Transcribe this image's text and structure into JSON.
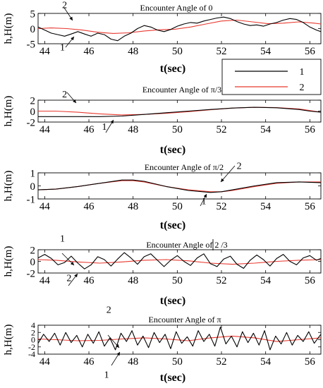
{
  "chart_data": [
    {
      "type": "line",
      "title": "Encounter Angle of 0",
      "xlabel": "t(sec)",
      "ylabel": "h,H(m)",
      "xlim": [
        43.7,
        56.5
      ],
      "ylim": [
        -5,
        5
      ],
      "xticks": [
        44,
        46,
        48,
        50,
        52,
        54,
        56
      ],
      "xtick_labels": [
        "44",
        "46",
        "48",
        "50",
        "52",
        "54",
        "56"
      ],
      "yticks": [
        -5,
        0,
        5
      ],
      "ytick_labels": [
        "-5",
        "0",
        "5"
      ],
      "grid": false,
      "legend": {
        "placement": "right",
        "entries": [
          "1",
          "2"
        ]
      },
      "annotations": [
        {
          "text": "1",
          "x": 44.8,
          "y": -7.2
        },
        {
          "text": "2",
          "x": 44.9,
          "y": 6.8
        }
      ],
      "series": [
        {
          "name": "1",
          "color": "#000000",
          "x": [
            43.7,
            44.0,
            44.3,
            44.6,
            44.9,
            45.2,
            45.5,
            45.8,
            46.1,
            46.4,
            46.7,
            47.0,
            47.3,
            47.6,
            47.9,
            48.2,
            48.5,
            48.8,
            49.1,
            49.4,
            49.7,
            50.0,
            50.3,
            50.6,
            50.9,
            51.2,
            51.5,
            51.8,
            52.1,
            52.4,
            52.7,
            53.0,
            53.3,
            53.6,
            53.9,
            54.2,
            54.5,
            54.8,
            55.1,
            55.4,
            55.7,
            56.0,
            56.3,
            56.5
          ],
          "y": [
            0.5,
            -0.5,
            -1.5,
            -2.0,
            -2.5,
            -1.8,
            -1.0,
            -1.8,
            -2.5,
            -1.5,
            -2.0,
            -3.5,
            -4.0,
            -2.5,
            -1.5,
            0.0,
            1.0,
            0.5,
            -0.5,
            -1.0,
            -0.3,
            0.8,
            1.5,
            2.0,
            1.8,
            2.5,
            3.0,
            3.5,
            3.8,
            3.3,
            2.3,
            1.5,
            1.0,
            1.2,
            0.8,
            1.5,
            2.0,
            2.8,
            3.3,
            3.0,
            2.0,
            0.5,
            -0.5,
            -1.0
          ]
        },
        {
          "name": "2",
          "color": "#e8392f",
          "x": [
            43.7,
            44.3,
            45.0,
            45.7,
            46.4,
            47.1,
            47.8,
            48.5,
            49.2,
            49.9,
            50.6,
            51.3,
            52.0,
            52.7,
            53.4,
            54.1,
            54.8,
            55.5,
            56.2,
            56.5
          ],
          "y": [
            0.0,
            0.2,
            0.0,
            -0.5,
            -1.2,
            -1.6,
            -1.4,
            -0.8,
            -0.4,
            -0.2,
            0.5,
            1.5,
            2.5,
            2.8,
            2.2,
            1.6,
            1.8,
            2.2,
            1.8,
            1.5
          ]
        }
      ]
    },
    {
      "type": "line",
      "title": "Encounter Angle of π/3",
      "xlabel": "t(sec)",
      "ylabel": "h,H(m)",
      "xlim": [
        43.7,
        56.5
      ],
      "ylim": [
        -2,
        2
      ],
      "xticks": [
        44,
        46,
        48,
        50,
        52,
        54,
        56
      ],
      "xtick_labels": [
        "44",
        "46",
        "48",
        "50",
        "52",
        "54",
        "56"
      ],
      "yticks": [
        -2,
        0,
        2
      ],
      "ytick_labels": [
        "-2",
        "0",
        "2"
      ],
      "grid": false,
      "annotations": [
        {
          "text": "2",
          "x": 44.9,
          "y": 2.5
        },
        {
          "text": "1",
          "x": 46.7,
          "y": -3.4
        }
      ],
      "series": [
        {
          "name": "1",
          "color": "#000000",
          "x": [
            43.7,
            44.5,
            45.5,
            46.5,
            47.5,
            48.5,
            49.5,
            50.5,
            51.5,
            52.5,
            53.5,
            54.5,
            55.5,
            56.0,
            56.5
          ],
          "y": [
            -1.0,
            -1.0,
            -1.0,
            -1.0,
            -0.9,
            -0.6,
            -0.3,
            0.0,
            0.3,
            0.55,
            0.7,
            0.6,
            0.3,
            0.0,
            -0.2
          ]
        },
        {
          "name": "2",
          "color": "#e8392f",
          "x": [
            43.7,
            44.5,
            45.5,
            46.5,
            47.5,
            48.5,
            49.5,
            50.5,
            51.5,
            52.5,
            53.5,
            54.5,
            55.5,
            56.0,
            56.5
          ],
          "y": [
            0.0,
            0.0,
            -0.2,
            -0.5,
            -0.7,
            -0.6,
            -0.4,
            -0.1,
            0.25,
            0.55,
            0.7,
            0.65,
            0.4,
            0.1,
            -0.2
          ]
        }
      ]
    },
    {
      "type": "line",
      "title": "Encounter Angle of π/2",
      "xlabel": "t(sec)",
      "ylabel": "h,H(m)",
      "xlim": [
        43.7,
        56.5
      ],
      "ylim": [
        -1,
        1
      ],
      "xticks": [
        44,
        46,
        48,
        50,
        52,
        54,
        56
      ],
      "xtick_labels": [
        "44",
        "46",
        "48",
        "50",
        "52",
        "54",
        "56"
      ],
      "yticks": [
        -1,
        0,
        1
      ],
      "ytick_labels": [
        "-1",
        "0",
        "1"
      ],
      "grid": false,
      "annotations": [
        {
          "text": "2",
          "x": 52.8,
          "y": 1.3
        },
        {
          "text": "1",
          "x": 51.2,
          "y": -1.4
        }
      ],
      "series": [
        {
          "name": "1",
          "color": "#000000",
          "x": [
            43.7,
            44.5,
            45.5,
            46.5,
            47.5,
            48.0,
            48.5,
            49.5,
            50.5,
            51.5,
            52.0,
            52.5,
            53.5,
            54.5,
            55.5,
            56.5
          ],
          "y": [
            -0.3,
            -0.25,
            -0.05,
            0.2,
            0.45,
            0.45,
            0.35,
            -0.05,
            -0.35,
            -0.5,
            -0.45,
            -0.3,
            0.0,
            0.25,
            0.3,
            0.25
          ]
        },
        {
          "name": "2",
          "color": "#e8392f",
          "x": [
            43.7,
            44.5,
            45.5,
            46.5,
            47.5,
            48.0,
            48.5,
            49.5,
            50.5,
            51.5,
            52.0,
            52.5,
            53.5,
            54.5,
            55.5,
            56.5
          ],
          "y": [
            -0.3,
            -0.25,
            -0.05,
            0.2,
            0.4,
            0.4,
            0.3,
            -0.05,
            -0.3,
            -0.45,
            -0.45,
            -0.35,
            -0.05,
            0.2,
            0.3,
            0.3
          ]
        }
      ]
    },
    {
      "type": "line",
      "title": "Encounter Angle of 2   /3",
      "xlabel": "t(sec)",
      "ylabel": "h,H(m)",
      "xlim": [
        43.7,
        56.5
      ],
      "ylim": [
        -2,
        2
      ],
      "xticks": [
        44,
        46,
        48,
        50,
        52,
        54,
        56
      ],
      "xtick_labels": [
        "44",
        "46",
        "48",
        "50",
        "52",
        "54",
        "56"
      ],
      "yticks": [
        -2,
        0,
        2
      ],
      "ytick_labels": [
        "-2",
        "0",
        "2"
      ],
      "grid": false,
      "annotations": [
        {
          "text": "1",
          "x": 44.8,
          "y": 3.4
        },
        {
          "text": "2",
          "x": 45.1,
          "y": -3.4
        }
      ],
      "series": [
        {
          "name": "1",
          "color": "#000000",
          "x": [
            43.7,
            44.0,
            44.3,
            44.6,
            44.9,
            45.2,
            45.5,
            45.8,
            46.1,
            46.4,
            46.7,
            47.0,
            47.3,
            47.6,
            47.9,
            48.2,
            48.5,
            48.8,
            49.1,
            49.4,
            49.7,
            50.0,
            50.3,
            50.6,
            50.9,
            51.2,
            51.5,
            51.8,
            52.1,
            52.4,
            52.7,
            53.0,
            53.3,
            53.6,
            53.9,
            54.2,
            54.5,
            54.8,
            55.1,
            55.4,
            55.7,
            56.0,
            56.3,
            56.5
          ],
          "y": [
            0.6,
            1.2,
            0.5,
            -0.6,
            -0.2,
            0.9,
            -0.3,
            -1.3,
            -0.6,
            0.8,
            0.3,
            -0.8,
            0.4,
            1.5,
            0.6,
            -0.5,
            0.8,
            1.3,
            0.2,
            -0.9,
            0.2,
            1.0,
            0.0,
            -0.7,
            0.6,
            1.3,
            -0.4,
            -0.9,
            0.4,
            0.9,
            -0.5,
            -1.2,
            0.2,
            1.1,
            0.3,
            -0.8,
            0.5,
            1.2,
            0.0,
            -0.6,
            0.6,
            1.0,
            0.2,
            0.5
          ]
        },
        {
          "name": "2",
          "color": "#e8392f",
          "x": [
            43.7,
            44.5,
            45.5,
            46.5,
            47.5,
            48.5,
            49.5,
            50.5,
            51.5,
            52.5,
            53.5,
            54.5,
            55.5,
            56.5
          ],
          "y": [
            0.3,
            0.2,
            -0.1,
            -0.3,
            -0.1,
            0.2,
            0.3,
            0.1,
            -0.3,
            -0.5,
            -0.3,
            0.0,
            0.2,
            0.3
          ]
        }
      ]
    },
    {
      "type": "line",
      "title": "Encounter Angle of  π",
      "xlabel": "t(sec)",
      "ylabel": "h,H(m)",
      "xlim": [
        43.7,
        56.5
      ],
      "ylim": [
        -4,
        4
      ],
      "xticks": [
        44,
        46,
        48,
        50,
        52,
        54,
        56
      ],
      "xtick_labels": [
        "44",
        "46",
        "48",
        "50",
        "52",
        "54",
        "56"
      ],
      "yticks": [
        -4,
        -2,
        0,
        2,
        4
      ],
      "ytick_labels": [
        "-4",
        "-2",
        "0",
        "2",
        "4"
      ],
      "grid": false,
      "annotations": [
        {
          "text": "2",
          "x": 46.9,
          "y": 7.4
        },
        {
          "text": "1",
          "x": 46.8,
          "y": -10.5
        }
      ],
      "series": [
        {
          "name": "1",
          "color": "#000000",
          "x": [
            43.7,
            43.95,
            44.2,
            44.45,
            44.7,
            44.95,
            45.2,
            45.45,
            45.7,
            45.95,
            46.2,
            46.45,
            46.7,
            46.95,
            47.2,
            47.45,
            47.7,
            47.95,
            48.2,
            48.45,
            48.7,
            48.95,
            49.2,
            49.45,
            49.7,
            49.95,
            50.2,
            50.45,
            50.7,
            50.95,
            51.2,
            51.45,
            51.7,
            51.95,
            52.2,
            52.45,
            52.7,
            52.95,
            53.2,
            53.45,
            53.7,
            53.95,
            54.2,
            54.45,
            54.7,
            54.95,
            55.2,
            55.45,
            55.7,
            55.95,
            56.2,
            56.5
          ],
          "y": [
            -1.0,
            1.5,
            -0.5,
            1.8,
            -1.5,
            2.0,
            -0.8,
            1.2,
            -2.0,
            1.5,
            -1.0,
            2.2,
            -1.8,
            0.5,
            -2.8,
            1.8,
            -0.5,
            2.5,
            -1.5,
            1.0,
            -2.2,
            2.0,
            -0.8,
            1.5,
            -2.5,
            2.2,
            -1.0,
            0.8,
            -1.8,
            2.5,
            -0.5,
            1.5,
            -1.8,
            3.5,
            -1.2,
            1.0,
            -2.0,
            2.2,
            -0.8,
            1.8,
            -1.5,
            2.5,
            -2.8,
            1.0,
            -1.2,
            2.0,
            -1.5,
            1.2,
            -0.5,
            2.2,
            -1.0,
            1.5
          ]
        },
        {
          "name": "2",
          "color": "#e8392f",
          "x": [
            43.7,
            44.5,
            45.5,
            46.5,
            47.5,
            48.5,
            49.5,
            50.5,
            51.5,
            52.5,
            53.5,
            54.5,
            55.5,
            56.5
          ],
          "y": [
            0.2,
            0.0,
            -0.3,
            -0.2,
            0.2,
            0.5,
            0.2,
            -0.3,
            0.5,
            1.0,
            0.5,
            -0.5,
            0.0,
            0.5
          ]
        }
      ]
    }
  ]
}
